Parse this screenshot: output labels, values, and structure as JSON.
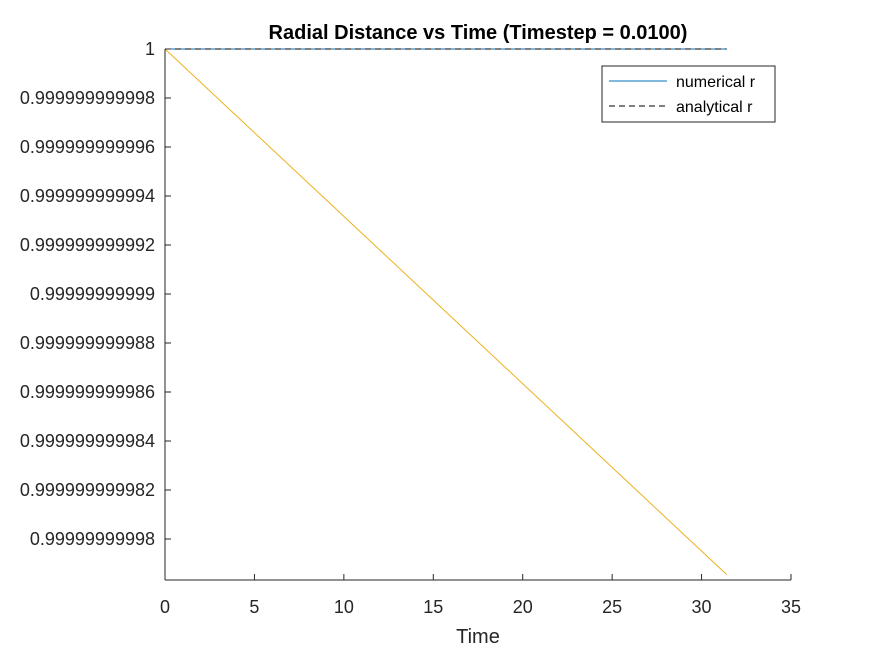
{
  "chart_data": {
    "type": "line",
    "title": "Radial Distance vs Time (Timestep = 0.0100)",
    "xlabel": "Time",
    "ylabel": "",
    "xlim": [
      0,
      35
    ],
    "ylim": [
      0.99999999997855,
      1.0
    ],
    "x_ticks": [
      0,
      5,
      10,
      15,
      20,
      25,
      30,
      35
    ],
    "x_tick_labels": [
      "0",
      "5",
      "10",
      "15",
      "20",
      "25",
      "30",
      "35"
    ],
    "y_ticks": [
      1.0,
      0.999999999998,
      0.999999999996,
      0.999999999994,
      0.999999999992,
      0.99999999999,
      0.999999999988,
      0.999999999986,
      0.999999999984,
      0.999999999982,
      0.99999999998
    ],
    "y_tick_labels": [
      "1",
      "0.999999999998",
      "0.999999999996",
      "0.999999999994",
      "0.999999999992",
      "0.99999999999",
      "0.999999999988",
      "0.999999999986",
      "0.999999999984",
      "0.999999999982",
      "0.99999999998"
    ],
    "grid": false,
    "legend_position": "top-right",
    "series": [
      {
        "name": "numerical r",
        "color": "#0072BD",
        "style": "solid",
        "x": [
          0,
          31.4
        ],
        "y": [
          1.0,
          1.0
        ]
      },
      {
        "name": "analytical r",
        "color": "#000000",
        "style": "dashed",
        "x": [
          0,
          31.4
        ],
        "y": [
          1.0,
          1.0
        ]
      },
      {
        "color": "#EDB120",
        "style": "solid",
        "x": [
          0,
          31.4
        ],
        "y": [
          1.0,
          0.99999999997855
        ]
      }
    ]
  }
}
